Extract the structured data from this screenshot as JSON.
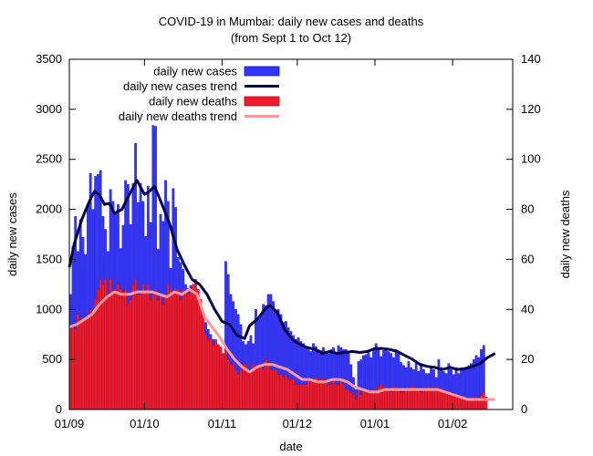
{
  "chart_data": {
    "type": "bar",
    "title": "COVID-19 in Mumbai: daily new cases and deaths",
    "subtitle": "(from Sept 1 to Oct 12)",
    "xlabel": "date",
    "ylabel_left": "daily new cases",
    "ylabel_right": "daily new deaths",
    "ylim_left": [
      0,
      3500
    ],
    "ylim_right": [
      0,
      140
    ],
    "yticks_left": [
      0,
      500,
      1000,
      1500,
      2000,
      2500,
      3000,
      3500
    ],
    "yticks_right": [
      0,
      20,
      40,
      60,
      80,
      100,
      120,
      140
    ],
    "x_tick_labels": [
      "01/09",
      "01/10",
      "01/11",
      "01/12",
      "01/01",
      "01/02"
    ],
    "x_range_days": [
      0,
      177
    ],
    "x_tick_days": [
      0,
      30,
      61,
      91,
      122,
      153
    ],
    "grid": false,
    "legend_position": "top-left",
    "colors": {
      "cases_bar": "#3333ff",
      "cases_trend": "#00004d",
      "deaths_bar": "#f21b2b",
      "deaths_trend": "#ff9999"
    },
    "series": [
      {
        "name": "daily new cases",
        "type": "bar",
        "axis": "left",
        "start_date": "2020-09-01",
        "values": [
          1150,
          1630,
          1930,
          1580,
          1900,
          1720,
          1550,
          2040,
          2360,
          2000,
          2330,
          2350,
          2390,
          1930,
          1800,
          1580,
          2200,
          2080,
          1970,
          2050,
          1610,
          1840,
          2290,
          2250,
          1850,
          2260,
          2660,
          2070,
          2260,
          2080,
          1730,
          2230,
          1870,
          2840,
          2830,
          1600,
          1950,
          1880,
          2290,
          2080,
          1410,
          2210,
          2020,
          1520,
          1470,
          1400,
          1250,
          1210,
          1240,
          1150,
          1080,
          1020,
          950,
          900,
          870,
          800,
          750,
          700,
          680,
          650,
          620,
          560,
          1480,
          1350,
          1150,
          1080,
          1000,
          950,
          850,
          680,
          650,
          680,
          740,
          660,
          1000,
          900,
          940,
          1050,
          1040,
          1150,
          1150,
          1080,
          980,
          1000,
          950,
          870,
          880,
          820,
          780,
          740,
          700,
          720,
          680,
          660,
          620,
          600,
          580,
          660,
          630,
          600,
          590,
          620,
          560,
          560,
          600,
          620,
          560,
          640,
          620,
          600,
          600,
          560,
          450,
          320,
          200,
          480,
          500,
          540,
          550,
          570,
          520,
          600,
          660,
          600,
          530,
          590,
          610,
          580,
          560,
          520,
          600,
          560,
          470,
          440,
          420,
          480,
          420,
          400,
          460,
          380,
          460,
          400,
          360,
          360,
          420,
          400,
          320,
          500,
          420,
          380,
          360,
          460,
          400,
          350,
          420,
          360,
          400,
          400,
          420,
          440,
          460,
          500,
          540,
          520,
          600,
          640
        ]
      },
      {
        "name": "daily new cases trend",
        "type": "line",
        "axis": "left",
        "points": [
          [
            0,
            1420
          ],
          [
            2,
            1660
          ],
          [
            5,
            1900
          ],
          [
            8,
            2080
          ],
          [
            10,
            2180
          ],
          [
            12,
            2150
          ],
          [
            14,
            2050
          ],
          [
            16,
            2060
          ],
          [
            18,
            1960
          ],
          [
            21,
            2000
          ],
          [
            24,
            2150
          ],
          [
            27,
            2290
          ],
          [
            30,
            2150
          ],
          [
            32,
            2180
          ],
          [
            34,
            2230
          ],
          [
            37,
            2050
          ],
          [
            40,
            1860
          ],
          [
            43,
            1600
          ],
          [
            46,
            1440
          ],
          [
            49,
            1300
          ],
          [
            52,
            1250
          ],
          [
            55,
            1150
          ],
          [
            58,
            1000
          ],
          [
            61,
            880
          ],
          [
            64,
            850
          ],
          [
            67,
            740
          ],
          [
            70,
            710
          ],
          [
            72,
            840
          ],
          [
            75,
            900
          ],
          [
            78,
            1000
          ],
          [
            80,
            1040
          ],
          [
            83,
            970
          ],
          [
            86,
            800
          ],
          [
            89,
            700
          ],
          [
            92,
            650
          ],
          [
            95,
            620
          ],
          [
            98,
            600
          ],
          [
            101,
            560
          ],
          [
            104,
            580
          ],
          [
            107,
            560
          ],
          [
            110,
            570
          ],
          [
            113,
            580
          ],
          [
            116,
            570
          ],
          [
            119,
            580
          ],
          [
            122,
            610
          ],
          [
            125,
            610
          ],
          [
            128,
            600
          ],
          [
            131,
            580
          ],
          [
            134,
            540
          ],
          [
            137,
            500
          ],
          [
            140,
            450
          ],
          [
            143,
            430
          ],
          [
            146,
            420
          ],
          [
            149,
            400
          ],
          [
            152,
            420
          ],
          [
            155,
            400
          ],
          [
            158,
            410
          ],
          [
            161,
            430
          ],
          [
            164,
            460
          ],
          [
            167,
            520
          ],
          [
            170,
            560
          ]
        ]
      },
      {
        "name": "daily new deaths",
        "type": "bar",
        "axis": "right",
        "start_date": "2020-09-01",
        "values": [
          33,
          33,
          32,
          38,
          35,
          36,
          36,
          38,
          40,
          38,
          44,
          48,
          52,
          50,
          52,
          46,
          52,
          46,
          48,
          50,
          48,
          47,
          48,
          42,
          44,
          50,
          52,
          46,
          46,
          50,
          47,
          50,
          44,
          46,
          48,
          44,
          46,
          42,
          46,
          50,
          48,
          46,
          48,
          48,
          44,
          48,
          47,
          46,
          48,
          50,
          52,
          48,
          44,
          38,
          30,
          28,
          28,
          26,
          28,
          26,
          25,
          22,
          24,
          20,
          18,
          18,
          16,
          14,
          16,
          18,
          18,
          16,
          16,
          18,
          16,
          18,
          18,
          16,
          20,
          18,
          16,
          16,
          16,
          14,
          14,
          13,
          14,
          12,
          12,
          12,
          10,
          10,
          10,
          10,
          10,
          12,
          11,
          12,
          13,
          12,
          12,
          12,
          12,
          10,
          10,
          12,
          10,
          10,
          12,
          10,
          8,
          8,
          7,
          6,
          4,
          8,
          6,
          7,
          8,
          8,
          7,
          8,
          8,
          9,
          10,
          9,
          8,
          8,
          7,
          9,
          8,
          8,
          7,
          7,
          8,
          8,
          9,
          9,
          8,
          8,
          7,
          8,
          8,
          9,
          8,
          8,
          9,
          8,
          8,
          7,
          7,
          7,
          6,
          6,
          5,
          5,
          5,
          4,
          4,
          4,
          4,
          5,
          5,
          4,
          6,
          7,
          5
        ]
      },
      {
        "name": "daily new deaths trend",
        "type": "line",
        "axis": "right",
        "points": [
          [
            0,
            33
          ],
          [
            3,
            34
          ],
          [
            6,
            36
          ],
          [
            9,
            38
          ],
          [
            12,
            42
          ],
          [
            15,
            45
          ],
          [
            18,
            47
          ],
          [
            21,
            46
          ],
          [
            24,
            46
          ],
          [
            27,
            47
          ],
          [
            30,
            47
          ],
          [
            33,
            47
          ],
          [
            36,
            46
          ],
          [
            39,
            45
          ],
          [
            42,
            47
          ],
          [
            45,
            46
          ],
          [
            48,
            48
          ],
          [
            51,
            46
          ],
          [
            54,
            37
          ],
          [
            57,
            33
          ],
          [
            60,
            29
          ],
          [
            63,
            24
          ],
          [
            66,
            20
          ],
          [
            69,
            17
          ],
          [
            72,
            15
          ],
          [
            75,
            17
          ],
          [
            78,
            18
          ],
          [
            81,
            18
          ],
          [
            84,
            17
          ],
          [
            87,
            16
          ],
          [
            90,
            14
          ],
          [
            93,
            12
          ],
          [
            96,
            12
          ],
          [
            99,
            11
          ],
          [
            102,
            11
          ],
          [
            105,
            12
          ],
          [
            108,
            12
          ],
          [
            111,
            11
          ],
          [
            114,
            9
          ],
          [
            117,
            8
          ],
          [
            120,
            7
          ],
          [
            123,
            7
          ],
          [
            126,
            8
          ],
          [
            129,
            8
          ],
          [
            132,
            8
          ],
          [
            135,
            8
          ],
          [
            138,
            8
          ],
          [
            141,
            8
          ],
          [
            144,
            8
          ],
          [
            147,
            8
          ],
          [
            150,
            7
          ],
          [
            153,
            6
          ],
          [
            156,
            5
          ],
          [
            159,
            4
          ],
          [
            162,
            4
          ],
          [
            165,
            4
          ],
          [
            168,
            4
          ],
          [
            170,
            4
          ]
        ]
      }
    ]
  }
}
